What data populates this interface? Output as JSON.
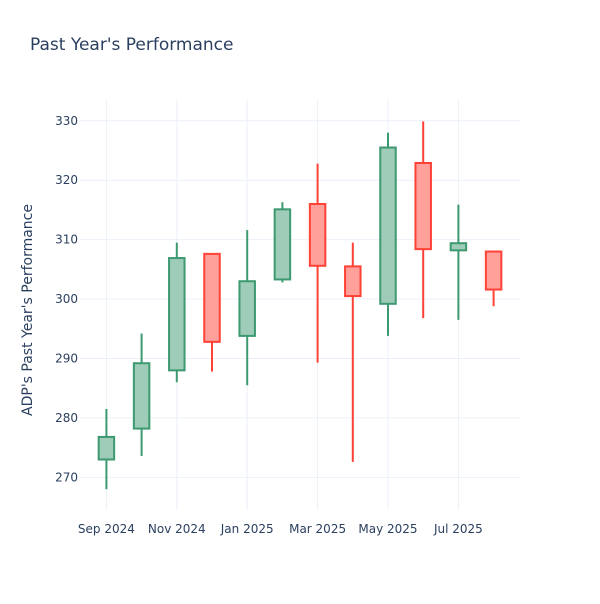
{
  "chart_data": {
    "type": "candlestick",
    "title": "Past Year's Performance",
    "xlabel": "",
    "ylabel": "ADP's Past Year's Performance",
    "ylim": [
      264.5,
      333.5
    ],
    "yticks": [
      270,
      280,
      290,
      300,
      310,
      320,
      330
    ],
    "xticks": [
      {
        "label": "Sep 2024",
        "pos": 0
      },
      {
        "label": "Nov 2024",
        "pos": 2
      },
      {
        "label": "Jan 2025",
        "pos": 4
      },
      {
        "label": "Mar 2025",
        "pos": 6
      },
      {
        "label": "May 2025",
        "pos": 8
      },
      {
        "label": "Jul 2025",
        "pos": 10
      }
    ],
    "xlim": [
      -0.75,
      11.75
    ],
    "grid": true,
    "increasing_color": "#3D9970",
    "increasing_fill": "#9ECCB8",
    "decreasing_color": "#FF4136",
    "decreasing_fill": "#FFA09B",
    "candles": [
      {
        "period": "Sep 2024",
        "open": 273.0,
        "high": 281.5,
        "low": 268.0,
        "close": 276.8
      },
      {
        "period": "Oct 2024",
        "open": 278.2,
        "high": 294.2,
        "low": 273.6,
        "close": 289.2
      },
      {
        "period": "Nov 2024",
        "open": 288.0,
        "high": 309.5,
        "low": 286.0,
        "close": 306.9
      },
      {
        "period": "Dec 2024",
        "open": 307.6,
        "high": 307.6,
        "low": 287.8,
        "close": 292.8
      },
      {
        "period": "Jan 2025",
        "open": 293.8,
        "high": 311.6,
        "low": 285.5,
        "close": 303.0
      },
      {
        "period": "Feb 2025",
        "open": 303.3,
        "high": 316.3,
        "low": 302.8,
        "close": 315.1
      },
      {
        "period": "Mar 2025",
        "open": 316.0,
        "high": 322.8,
        "low": 289.3,
        "close": 305.6
      },
      {
        "period": "Apr 2025",
        "open": 305.5,
        "high": 309.5,
        "low": 272.6,
        "close": 300.5
      },
      {
        "period": "May 2025",
        "open": 299.2,
        "high": 328.0,
        "low": 293.8,
        "close": 325.5
      },
      {
        "period": "Jun 2025",
        "open": 322.9,
        "high": 329.9,
        "low": 296.8,
        "close": 308.4
      },
      {
        "period": "Jul 2025",
        "open": 308.2,
        "high": 315.9,
        "low": 296.5,
        "close": 309.4
      },
      {
        "period": "Aug 2025",
        "open": 308.0,
        "high": 308.0,
        "low": 298.8,
        "close": 301.6
      }
    ]
  }
}
